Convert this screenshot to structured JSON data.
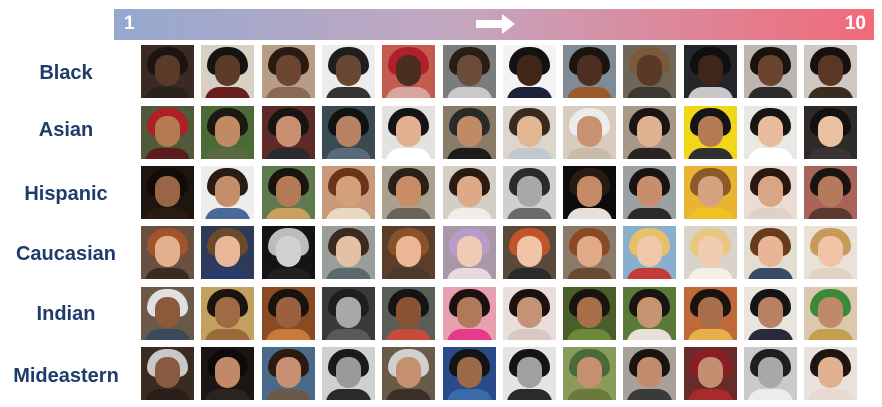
{
  "scale": {
    "min_label": "1",
    "max_label": "10"
  },
  "rows": [
    {
      "label": "Black",
      "photos": [
        {
          "bg": "#3b2a22",
          "skin": "#5a3a28",
          "hair": "#1c1410",
          "clothes": "#2a221c"
        },
        {
          "bg": "#d8d0c4",
          "skin": "#5b3b27",
          "hair": "#141414",
          "clothes": "#6a1f1f"
        },
        {
          "bg": "#b89d86",
          "skin": "#6c4630",
          "hair": "#2a1a12",
          "clothes": "#8b6a55"
        },
        {
          "bg": "#ececec",
          "skin": "#6a4634",
          "hair": "#1e1e1e",
          "clothes": "#333333"
        },
        {
          "bg": "#c35b4e",
          "skin": "#4a2e20",
          "hair": "#b0202a",
          "clothes": "#d8a4a0"
        },
        {
          "bg": "#7a7c7e",
          "skin": "#6b4b39",
          "hair": "#2a1d16",
          "clothes": "#c9c9c9"
        },
        {
          "bg": "#f3f3f3",
          "skin": "#3f2619",
          "hair": "#121212",
          "clothes": "#1b2336"
        },
        {
          "bg": "#7f8c95",
          "skin": "#4c2f20",
          "hair": "#1a1410",
          "clothes": "#9a5a2a"
        },
        {
          "bg": "#6e6656",
          "skin": "#5a3a26",
          "hair": "#7a5a3a",
          "clothes": "#3a3a30"
        },
        {
          "bg": "#24262a",
          "skin": "#3e2618",
          "hair": "#0f0f0f",
          "clothes": "#c8c8c8"
        },
        {
          "bg": "#bdb6b0",
          "skin": "#6a4430",
          "hair": "#1a120c",
          "clothes": "#2a2a2a"
        },
        {
          "bg": "#cfc8c0",
          "skin": "#5a3724",
          "hair": "#181010",
          "clothes": "#3a2a20"
        }
      ]
    },
    {
      "label": "Asian",
      "photos": [
        {
          "bg": "#4e5a3a",
          "skin": "#b47a52",
          "hair": "#b01e26",
          "clothes": "#5c1c1c"
        },
        {
          "bg": "#4a6a36",
          "skin": "#c08a62",
          "hair": "#1c1814",
          "clothes": "#5a6a40"
        },
        {
          "bg": "#5e2a28",
          "skin": "#c89070",
          "hair": "#181414",
          "clothes": "#2a2a2a"
        },
        {
          "bg": "#3a4a52",
          "skin": "#b68262",
          "hair": "#121212",
          "clothes": "#5a6a7a"
        },
        {
          "bg": "#e4e2e0",
          "skin": "#e0b090",
          "hair": "#141414",
          "clothes": "#ffffff"
        },
        {
          "bg": "#8a7a68",
          "skin": "#c08a64",
          "hair": "#2a2a2a",
          "clothes": "#1c1c1c"
        },
        {
          "bg": "#dcd6ce",
          "skin": "#e2b894",
          "hair": "#3a2a1e",
          "clothes": "#c0c8d0"
        },
        {
          "bg": "#d8ccbe",
          "skin": "#c89272",
          "hair": "#ececec",
          "clothes": "#c8bca8"
        },
        {
          "bg": "#a89888",
          "skin": "#e0b292",
          "hair": "#1a1412",
          "clothes": "#2a2422"
        },
        {
          "bg": "#f2d61a",
          "skin": "#b47a52",
          "hair": "#141414",
          "clothes": "#303030"
        },
        {
          "bg": "#eae8e4",
          "skin": "#e6bc9c",
          "hair": "#181414",
          "clothes": "#ffffff"
        },
        {
          "bg": "#2e2a28",
          "skin": "#eac2a2",
          "hair": "#141010",
          "clothes": "#3a3434"
        }
      ]
    },
    {
      "label": "Hispanic",
      "photos": [
        {
          "bg": "#1e1410",
          "skin": "#9a6446",
          "hair": "#120c08",
          "clothes": "#2a1a12"
        },
        {
          "bg": "#ededeb",
          "skin": "#c48e6a",
          "hair": "#2a1c14",
          "clothes": "#4a6a9a"
        },
        {
          "bg": "#5e7a4e",
          "skin": "#b47a56",
          "hair": "#1a1410",
          "clothes": "#c8a060"
        },
        {
          "bg": "#c89a7a",
          "skin": "#d4a07a",
          "hair": "#6a3418",
          "clothes": "#e8d8c0"
        },
        {
          "bg": "#a7a18e",
          "skin": "#c88c66",
          "hair": "#2a1e18",
          "clothes": "#6a6458"
        },
        {
          "bg": "#d4cec6",
          "skin": "#dcaa86",
          "hair": "#2a1a10",
          "clothes": "#f0ece8"
        },
        {
          "bg": "#cfcfcf",
          "skin": "#a8a8a8",
          "hair": "#2a2a2a",
          "clothes": "#6a6a6a"
        },
        {
          "bg": "#0c0c0c",
          "skin": "#c48a66",
          "hair": "#2a1a10",
          "clothes": "#e8e0d8"
        },
        {
          "bg": "#9aa0a4",
          "skin": "#c68e6a",
          "hair": "#1a1410",
          "clothes": "#2a2a2a"
        },
        {
          "bg": "#e8b432",
          "skin": "#d4a27e",
          "hair": "#8a5a28",
          "clothes": "#f2c020"
        },
        {
          "bg": "#ecdcd4",
          "skin": "#d8a684",
          "hair": "#2a1810",
          "clothes": "#e0d0c8"
        },
        {
          "bg": "#a8645a",
          "skin": "#b47a5a",
          "hair": "#1a1410",
          "clothes": "#5a3a30"
        }
      ]
    },
    {
      "label": "Caucasian",
      "photos": [
        {
          "bg": "#6a5040",
          "skin": "#e2b08c",
          "hair": "#a4542a",
          "clothes": "#3a2a20"
        },
        {
          "bg": "#2e3a5a",
          "skin": "#e8b898",
          "hair": "#6a4a2a",
          "clothes": "#2a3a6a"
        },
        {
          "bg": "#141414",
          "skin": "#d0d0d0",
          "hair": "#bcbcbc",
          "clothes": "#202020"
        },
        {
          "bg": "#9a9e9a",
          "skin": "#e4c0a4",
          "hair": "#3a2a20",
          "clothes": "#5a6a6a"
        },
        {
          "bg": "#5a3e2a",
          "skin": "#eab694",
          "hair": "#8a5228",
          "clothes": "#4a3828"
        },
        {
          "bg": "#a898a8",
          "skin": "#f0cab4",
          "hair": "#b89cc8",
          "clothes": "#e8d8e0"
        },
        {
          "bg": "#5a4a3c",
          "skin": "#f0c4a4",
          "hair": "#c2542a",
          "clothes": "#2a2a2a"
        },
        {
          "bg": "#8a7a6a",
          "skin": "#e0aa86",
          "hair": "#8a4a24",
          "clothes": "#6a4a30"
        },
        {
          "bg": "#88b0cc",
          "skin": "#f0c8a8",
          "hair": "#e8c06a",
          "clothes": "#c43a3a"
        },
        {
          "bg": "#d8d4cc",
          "skin": "#f2ccae",
          "hair": "#e6c880",
          "clothes": "#f4f0e8"
        },
        {
          "bg": "#e4ddd2",
          "skin": "#e8b696",
          "hair": "#6a3a1c",
          "clothes": "#3a4a6a"
        },
        {
          "bg": "#e8e2d8",
          "skin": "#f0c4a4",
          "hair": "#c89a5a",
          "clothes": "#e0d4c0"
        }
      ]
    },
    {
      "label": "Indian",
      "photos": [
        {
          "bg": "#6a5848",
          "skin": "#8a5a3a",
          "hair": "#e0e0e0",
          "clothes": "#3a4a5a"
        },
        {
          "bg": "#c4a060",
          "skin": "#a06a44",
          "hair": "#1a1410",
          "clothes": "#9a6a3a"
        },
        {
          "bg": "#8a4a24",
          "skin": "#9a6040",
          "hair": "#1a120c",
          "clothes": "#c87a3a"
        },
        {
          "bg": "#3a3a3a",
          "skin": "#a8a8a8",
          "hair": "#1e1e1e",
          "clothes": "#5a5a5a"
        },
        {
          "bg": "#5a5e56",
          "skin": "#8a5434",
          "hair": "#141414",
          "clothes": "#c84a3a"
        },
        {
          "bg": "#e8a0b0",
          "skin": "#b07a5a",
          "hair": "#1a1210",
          "clothes": "#e83a8a"
        },
        {
          "bg": "#eadedc",
          "skin": "#c49274",
          "hair": "#1a1210",
          "clothes": "#d8c8c4"
        },
        {
          "bg": "#4a5e2a",
          "skin": "#a86e4a",
          "hair": "#1a1410",
          "clothes": "#6a8a3a"
        },
        {
          "bg": "#5a7a3a",
          "skin": "#c69470",
          "hair": "#1a1410",
          "clothes": "#e8e0d8"
        },
        {
          "bg": "#c06a3a",
          "skin": "#a86e4c",
          "hair": "#1a120e",
          "clothes": "#e8b04a"
        },
        {
          "bg": "#e8e4de",
          "skin": "#b88262",
          "hair": "#141414",
          "clothes": "#2a2a3a"
        },
        {
          "bg": "#dcc8b0",
          "skin": "#c08a68",
          "hair": "#3a8a3a",
          "clothes": "#c4a04a"
        }
      ]
    },
    {
      "label": "Mideastern",
      "photos": [
        {
          "bg": "#3a2a20",
          "skin": "#8a5a40",
          "hair": "#c8c8c8",
          "clothes": "#2a1e18"
        },
        {
          "bg": "#1a1614",
          "skin": "#c08a68",
          "hair": "#0e0a08",
          "clothes": "#2a2420"
        },
        {
          "bg": "#4a6a8a",
          "skin": "#c89072",
          "hair": "#2a1a10",
          "clothes": "#6a5a4a"
        },
        {
          "bg": "#d0d0d0",
          "skin": "#9a9a9a",
          "hair": "#1a1a1a",
          "clothes": "#2a2a2a"
        },
        {
          "bg": "#6a5a4a",
          "skin": "#c4906e",
          "hair": "#d0d0d0",
          "clothes": "#3a3028"
        },
        {
          "bg": "#2a4a8a",
          "skin": "#9a6a4a",
          "hair": "#141414",
          "clothes": "#3a6aaa"
        },
        {
          "bg": "#e4e4e4",
          "skin": "#a0a0a0",
          "hair": "#141414",
          "clothes": "#2a2a2a"
        },
        {
          "bg": "#8a9a5a",
          "skin": "#c49070",
          "hair": "#4a6a3a",
          "clothes": "#6a7a3a"
        },
        {
          "bg": "#a8a09a",
          "skin": "#c08c6c",
          "hair": "#1a1410",
          "clothes": "#3a3a3a"
        },
        {
          "bg": "#6a2a2a",
          "skin": "#c48e70",
          "hair": "#8a1e24",
          "clothes": "#a82a2a"
        },
        {
          "bg": "#cacaca",
          "skin": "#a8a8a8",
          "hair": "#1e1e1e",
          "clothes": "#ececec"
        },
        {
          "bg": "#e8e2dc",
          "skin": "#e0b090",
          "hair": "#1e1410",
          "clothes": "#e8d8d0"
        }
      ]
    }
  ]
}
